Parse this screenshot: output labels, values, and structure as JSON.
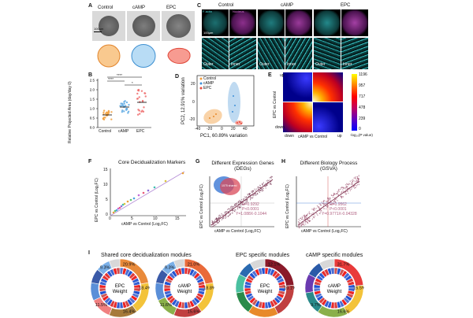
{
  "figure": {
    "panel_a": {
      "letter": "A",
      "labels": [
        "Control",
        "cAMP",
        "EPC"
      ],
      "scale_label": "100μm",
      "outline_colors": [
        "#f4a24a",
        "#6fb7e8",
        "#f06a5a"
      ]
    },
    "panel_b": {
      "letter": "B",
      "ylabel": "Relative Projected Area (day/day 0)",
      "yticks": [
        "0.0",
        "0.5",
        "1.0",
        "1.5",
        "2.0",
        "2.5"
      ],
      "categories": [
        "Control",
        "cAMP",
        "EPC"
      ],
      "sig": [
        "****",
        "****",
        "*"
      ],
      "colors": [
        "#f2a03d",
        "#5da9e3",
        "#ef6d6d"
      ]
    },
    "panel_c": {
      "letter": "C",
      "groups": [
        "Control",
        "cAMP",
        "EPC"
      ],
      "stains": [
        "F-actin",
        "Nucleus"
      ],
      "sub": [
        "Outer",
        "Inner"
      ],
      "scale_label": "100μm"
    },
    "panel_d": {
      "letter": "D",
      "legend": [
        "Control",
        "cAMP",
        "EPC"
      ],
      "colors": [
        "#f29b3b",
        "#3d8fd9",
        "#e84a3c"
      ],
      "xlabel": "PC1, 60.89% variation",
      "ylabel": "PC2, 12.91% variation",
      "xticks": [
        "-40",
        "-20",
        "0",
        "20",
        "40"
      ],
      "yticks": [
        "-20",
        "0",
        "20"
      ]
    },
    "panel_e": {
      "letter": "E",
      "xlabel": "cAMP vs Control",
      "ylabel": "EPC vs Control",
      "x_ends": [
        "down",
        "up"
      ],
      "y_ends": [
        "up",
        "down"
      ],
      "colorbar_ticks": [
        "1196",
        "957",
        "717",
        "478",
        "239",
        "0"
      ],
      "colorbar_title": "-log₁₀(P value)"
    },
    "panel_f": {
      "letter": "F",
      "title": "Core Decidualization Markers",
      "xlabel": "cAMP vs Control (Log₂FC)",
      "ylabel": "EPC vs Control (Log₂FC)",
      "xticks": [
        "0",
        "5",
        "10",
        "15"
      ],
      "yticks": [
        "0",
        "5",
        "10",
        "15"
      ]
    },
    "panel_g": {
      "letter": "G",
      "title": "Different Expression Genes (DEGs)",
      "xlabel": "cAMP vs Control (Log₂FC)",
      "ylabel": "EPC vs Control (Log₂FC)",
      "stats": [
        "R=0.9292",
        "P<0.0001",
        "Y=1.088X-0.1044"
      ],
      "venn_label": "1075 shared"
    },
    "panel_h": {
      "letter": "H",
      "title": "Different Biology Process (GSVA)",
      "xlabel": "cAMP vs Control (Log₂FC)",
      "ylabel": "EPC vs Control (Log₂FC)",
      "stats": [
        "R=0.9562",
        "P<0.0001",
        "Y=0.9771X-0.04328"
      ]
    },
    "panel_i": {
      "letter": "I",
      "section_titles": [
        "Shared core decidualization modules",
        "EPC specific modules",
        "cAMP specific modules"
      ],
      "donut_centers": [
        [
          "EPC",
          "Weight"
        ],
        [
          "cAMP",
          "Weight"
        ],
        [
          "EPC",
          "Weight"
        ],
        [
          "cAMP",
          "Weight"
        ]
      ],
      "donut_percents": [
        [
          "20.9%",
          "18.4%",
          "16.4%",
          "11.5%",
          "9.3%"
        ],
        [
          "21.0%",
          "18.8%",
          "15.6%",
          "11.6%",
          "9.3%"
        ],
        [
          "12.1%",
          "10.1%"
        ],
        [
          "31.7%",
          "15.5%",
          "16.6%",
          "9.7%"
        ]
      ]
    }
  }
}
